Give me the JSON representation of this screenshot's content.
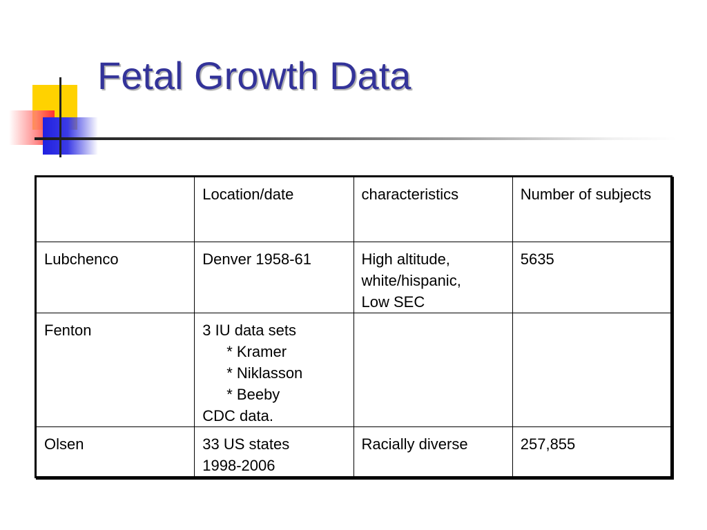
{
  "slide": {
    "title": "Fetal Growth Data"
  },
  "table": {
    "header": [
      "",
      "Location/date",
      "characteristics",
      "Number of subjects"
    ],
    "rows": [
      {
        "name": "Lubchenco",
        "location_date": [
          "Denver 1958-61"
        ],
        "characteristics": [
          "High altitude,",
          "white/hispanic,",
          "Low SEC"
        ],
        "subjects": "5635"
      },
      {
        "name": "Fenton",
        "location_date": [
          "3 IU data sets",
          "* Kramer",
          "* Niklasson",
          "* Beeby",
          "CDC data."
        ],
        "characteristics": [],
        "subjects": ""
      },
      {
        "name": "Olsen",
        "location_date": [
          "33 US states",
          "1998-2006"
        ],
        "characteristics": [
          "Racially diverse"
        ],
        "subjects": "257,855"
      }
    ]
  },
  "colors": {
    "title": "#333399",
    "accent_yellow": "#ffd200",
    "accent_red": "#ff3030",
    "accent_blue": "#2020e0"
  }
}
